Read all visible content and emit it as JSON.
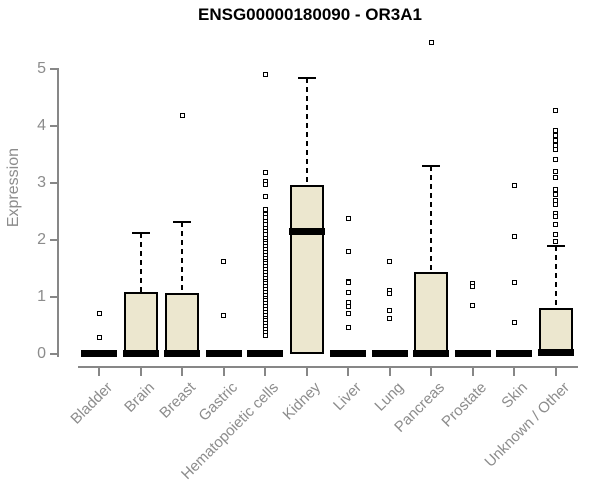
{
  "title": "ENSG00000180090 - OR3A1",
  "colors": {
    "box_fill": "#ece7cf",
    "box_border": "#000000",
    "median": "#000000",
    "whisker": "#000000",
    "outlier_fill": "#ffffff",
    "axis_line": "#878787",
    "axis_text": "#8c8c8c",
    "title_text": "#000000"
  },
  "chart_data": {
    "type": "boxplot",
    "title": "ENSG00000180090 - OR3A1",
    "xlabel": "",
    "ylabel": "Expression",
    "ylim": [
      0,
      5.6
    ],
    "yticks": [
      0,
      1,
      2,
      3,
      4,
      5
    ],
    "grid": false,
    "legend": false,
    "categories": [
      "Bladder",
      "Brain",
      "Breast",
      "Gastric",
      "Hematopoietic cells",
      "Kidney",
      "Liver",
      "Lung",
      "Pancreas",
      "Prostate",
      "Skin",
      "Unknown / Other"
    ],
    "boxes": [
      {
        "category": "Bladder",
        "q1": 0,
        "median": 0.02,
        "q3": 0.03,
        "whisker_low": 0,
        "whisker_high": 0.03,
        "outliers": [
          0.71,
          0.29
        ]
      },
      {
        "category": "Brain",
        "q1": 0,
        "median": 0.02,
        "q3": 1.09,
        "whisker_low": 0,
        "whisker_high": 2.12,
        "outliers": []
      },
      {
        "category": "Breast",
        "q1": 0,
        "median": 0.02,
        "q3": 1.07,
        "whisker_low": 0,
        "whisker_high": 2.32,
        "outliers": [
          4.19
        ]
      },
      {
        "category": "Gastric",
        "q1": 0,
        "median": 0.02,
        "q3": 0.03,
        "whisker_low": 0,
        "whisker_high": 0.03,
        "outliers": [
          1.62,
          0.67
        ]
      },
      {
        "category": "Hematopoietic cells",
        "q1": 0,
        "median": 0.02,
        "q3": 0.03,
        "whisker_low": 0,
        "whisker_high": 0.03,
        "outliers": [
          4.91,
          3.18,
          3.02,
          2.98,
          2.76,
          2.53,
          2.45,
          2.39,
          2.33,
          2.27,
          2.21,
          2.15,
          2.09,
          2.03,
          1.98,
          1.93,
          1.88,
          1.83,
          1.78,
          1.73,
          1.68,
          1.63,
          1.58,
          1.53,
          1.48,
          1.43,
          1.38,
          1.33,
          1.28,
          1.23,
          1.18,
          1.13,
          1.08,
          1.03,
          0.98,
          0.93,
          0.88,
          0.83,
          0.78,
          0.73,
          0.68,
          0.63,
          0.58,
          0.53,
          0.48,
          0.43,
          0.38,
          0.33
        ]
      },
      {
        "category": "Kidney",
        "q1": 0,
        "median": 2.15,
        "q3": 2.97,
        "whisker_low": 0,
        "whisker_high": 4.84,
        "outliers": []
      },
      {
        "category": "Liver",
        "q1": 0,
        "median": 0.02,
        "q3": 0.03,
        "whisker_low": 0,
        "whisker_high": 0.03,
        "outliers": [
          2.38,
          1.79,
          1.28,
          1.25,
          1.08,
          0.9,
          0.84,
          0.71,
          0.47
        ]
      },
      {
        "category": "Lung",
        "q1": 0,
        "median": 0.02,
        "q3": 0.03,
        "whisker_low": 0,
        "whisker_high": 0.03,
        "outliers": [
          1.62,
          1.12,
          1.07,
          0.77,
          0.63
        ]
      },
      {
        "category": "Pancreas",
        "q1": 0,
        "median": 0.02,
        "q3": 1.43,
        "whisker_low": 0,
        "whisker_high": 3.3,
        "outliers": [
          5.47
        ]
      },
      {
        "category": "Prostate",
        "q1": 0,
        "median": 0.02,
        "q3": 0.03,
        "whisker_low": 0,
        "whisker_high": 0.03,
        "outliers": [
          1.23,
          1.19,
          0.85
        ]
      },
      {
        "category": "Skin",
        "q1": 0,
        "median": 0.02,
        "q3": 0.03,
        "whisker_low": 0,
        "whisker_high": 0.03,
        "outliers": [
          2.96,
          2.06,
          1.26,
          0.55
        ]
      },
      {
        "category": "Unknown / Other",
        "q1": 0,
        "median": 0.03,
        "q3": 0.8,
        "whisker_low": 0,
        "whisker_high": 1.9,
        "outliers": [
          4.27,
          3.92,
          3.83,
          3.74,
          3.66,
          3.58,
          3.42,
          3.2,
          3.1,
          2.88,
          2.79,
          2.7,
          2.62,
          2.46,
          2.41,
          2.27,
          2.1,
          1.97
        ]
      }
    ]
  }
}
